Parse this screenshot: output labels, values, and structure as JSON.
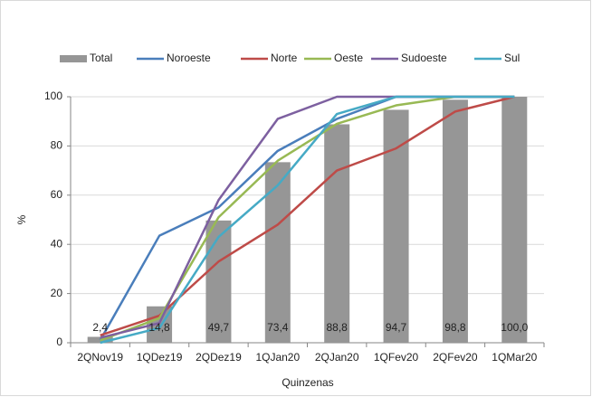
{
  "chart_data": {
    "type": "bar",
    "ylabel": "%",
    "xlabel": "Quinzenas",
    "categories": [
      "2QNov19",
      "1QDez19",
      "2QDez19",
      "1QJan20",
      "2QJan20",
      "1QFev20",
      "2QFev20",
      "1QMar20"
    ],
    "series": [
      {
        "name": "Total",
        "type": "bar",
        "color": "#969696",
        "values": [
          2.4,
          14.8,
          49.7,
          73.4,
          88.8,
          94.7,
          98.8,
          100.0
        ],
        "value_labels": [
          "2,4",
          "14,8",
          "49,7",
          "73,4",
          "88,8",
          "94,7",
          "98,8",
          "100,0"
        ]
      },
      {
        "name": "Noroeste",
        "type": "line",
        "color": "#4a7ebb",
        "values": [
          1,
          43.5,
          55,
          78,
          91,
          100,
          100,
          100
        ]
      },
      {
        "name": "Norte",
        "type": "line",
        "color": "#be4b48",
        "values": [
          3,
          11,
          33,
          48,
          70,
          79,
          94,
          100
        ]
      },
      {
        "name": "Oeste",
        "type": "line",
        "color": "#98b954",
        "values": [
          1,
          10,
          51,
          74,
          89,
          96.5,
          100,
          100
        ]
      },
      {
        "name": "Sudoeste",
        "type": "line",
        "color": "#7d60a0",
        "values": [
          2,
          8,
          58,
          91,
          100,
          100,
          100,
          100
        ]
      },
      {
        "name": "Sul",
        "type": "line",
        "color": "#46aac5",
        "values": [
          0,
          6,
          43,
          64,
          93,
          100,
          100,
          100
        ]
      }
    ],
    "ylim": [
      0,
      100
    ],
    "yticks": [
      0,
      20,
      40,
      60,
      80,
      100
    ],
    "grid": true
  }
}
